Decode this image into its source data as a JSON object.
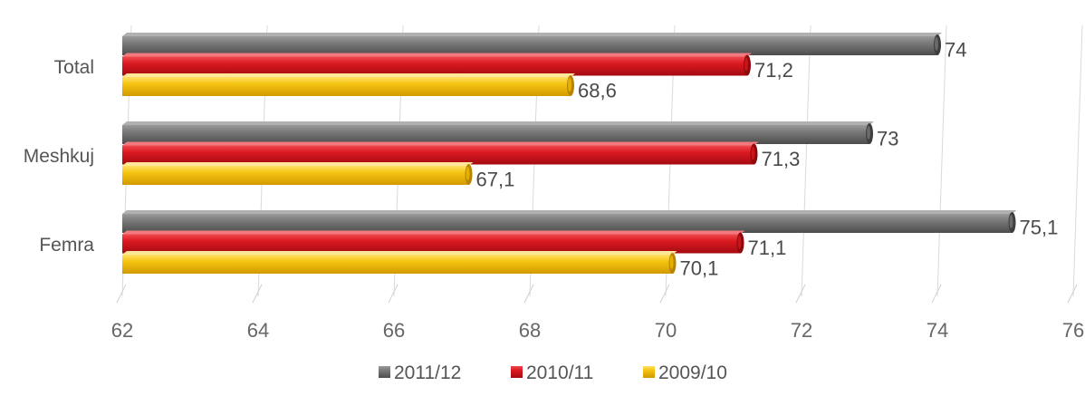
{
  "chart_data": {
    "type": "bar",
    "orientation": "horizontal",
    "categories": [
      "Total",
      "Meshkuj",
      "Femra"
    ],
    "series": [
      {
        "name": "2011/12",
        "color": "#6d6d6d",
        "values": [
          74,
          73,
          75.1
        ],
        "labels": [
          "74",
          "73",
          "75,1"
        ]
      },
      {
        "name": "2010/11",
        "color": "#d8141c",
        "values": [
          71.2,
          71.3,
          71.1
        ],
        "labels": [
          "71,2",
          "71,3",
          "71,1"
        ]
      },
      {
        "name": "2009/10",
        "color": "#f2c00f",
        "values": [
          68.6,
          67.1,
          70.1
        ],
        "labels": [
          "68,6",
          "67,1",
          "70,1"
        ]
      }
    ],
    "x_ticks": [
      62,
      64,
      66,
      68,
      70,
      72,
      74,
      76
    ],
    "xlim": [
      62,
      76
    ],
    "grid": true,
    "legend": "bottom",
    "style": "3d"
  }
}
